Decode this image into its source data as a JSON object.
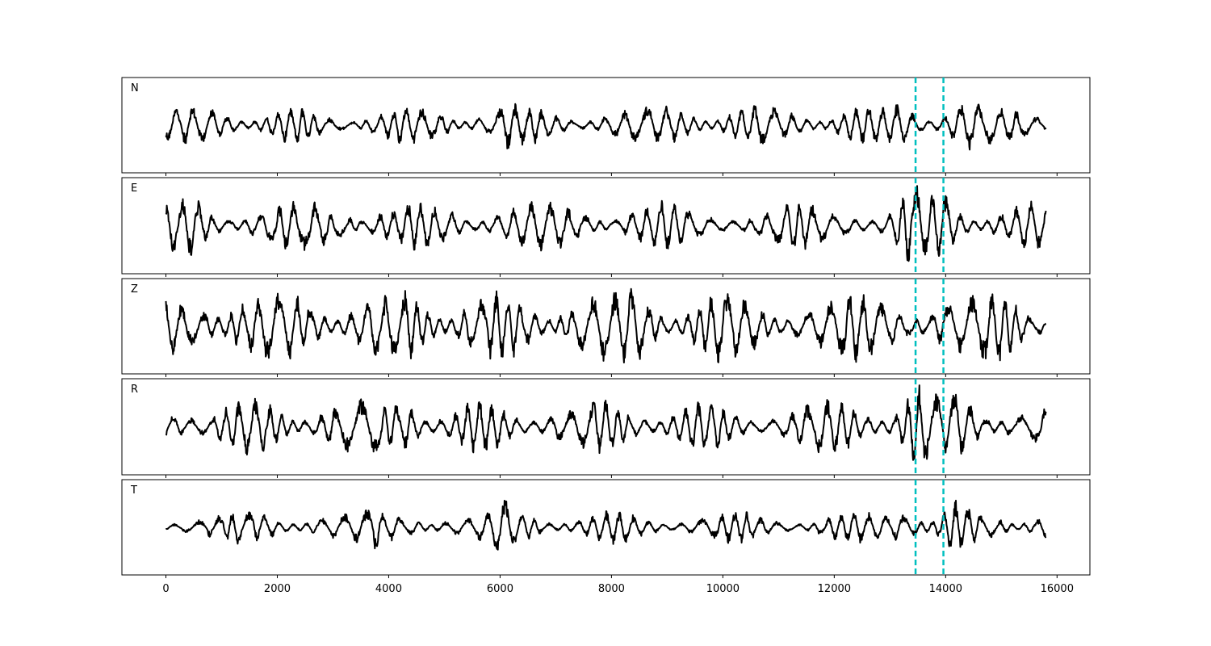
{
  "chart_data": {
    "type": "line",
    "title": "",
    "xlabel": "",
    "ylabel": "",
    "xlim": [
      -790,
      16590
    ],
    "x_range": [
      0,
      15800
    ],
    "xticks": [
      0,
      2000,
      4000,
      6000,
      8000,
      10000,
      12000,
      14000,
      16000
    ],
    "xtick_labels": [
      "0",
      "2000",
      "4000",
      "6000",
      "8000",
      "10000",
      "12000",
      "14000",
      "16000"
    ],
    "grid": false,
    "legend": "none",
    "line_color": "#000000",
    "marker_color": "#00bfbf",
    "vertical_markers": [
      13460,
      13960
    ],
    "series": [
      {
        "name": "N"
      },
      {
        "name": "E"
      },
      {
        "name": "Z"
      },
      {
        "name": "R"
      },
      {
        "name": "T"
      }
    ]
  }
}
